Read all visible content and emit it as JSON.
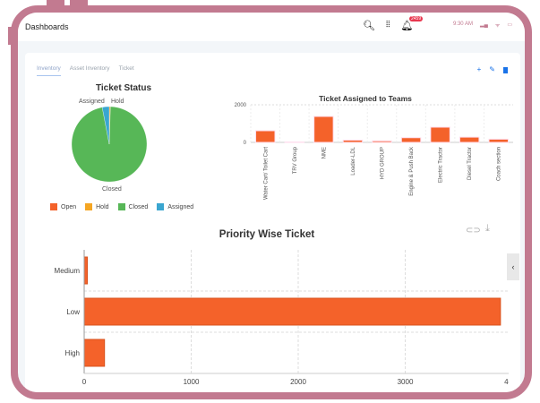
{
  "header": {
    "title": "Dashboards",
    "badge": "2459",
    "time": "9:30 AM"
  },
  "icons": [
    "zoom-icon",
    "barcode-scan-icon",
    "bell-icon",
    "signal-icon",
    "wifi-icon",
    "battery-icon"
  ],
  "tabs": [
    {
      "label": "Inventory",
      "active": true
    },
    {
      "label": "Asset Inventory"
    },
    {
      "label": "Ticket"
    }
  ],
  "actions": {
    "add": "+",
    "edit": "✎",
    "delete": "🗑"
  },
  "colors": {
    "open": "#f4622a",
    "hold": "#f5a623",
    "closed": "#57b757",
    "assigned": "#3aa6d0",
    "frame": "#c27a90"
  },
  "chart_data": [
    {
      "type": "pie",
      "title": "Ticket Status",
      "labels": [
        "Open",
        "Hold",
        "Closed",
        "Assigned"
      ],
      "values": [
        0,
        0.5,
        96.5,
        3
      ],
      "legend": "bottom"
    },
    {
      "type": "bar",
      "title": "Ticket Assigned to Teams",
      "categories": [
        "Water Cart/ Toilet Cart",
        "TRV Group",
        "NME",
        "Loader-LDL",
        "HYD GROUP",
        "Engine & Push Back",
        "Electric Tractor",
        "Diesel Tractor",
        "Coach section"
      ],
      "values": [
        620,
        20,
        1380,
        120,
        80,
        250,
        810,
        280,
        170
      ],
      "ylim": [
        0,
        2000
      ],
      "yticks": [
        "0",
        "2000"
      ]
    },
    {
      "type": "bar",
      "orientation": "horizontal",
      "title": "Priority Wise Ticket",
      "categories": [
        "Medium",
        "Low",
        "High"
      ],
      "values": [
        30,
        3890,
        190
      ],
      "xlim": [
        0,
        4000
      ],
      "xticks": [
        "0",
        "1000",
        "2000",
        "3000",
        "4000"
      ],
      "grid": true
    }
  ]
}
